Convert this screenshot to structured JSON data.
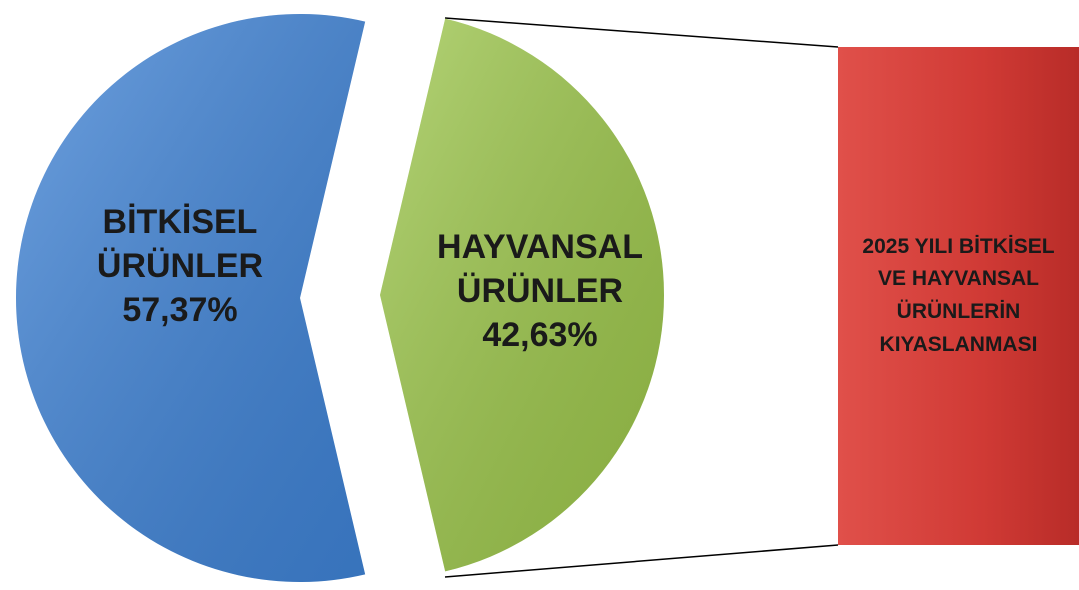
{
  "chart_data": {
    "type": "pie",
    "title": "2025 YILI BİTKİSEL VE HAYVANSAL ÜRÜNLERİN KIYASLANMASI",
    "categories": [
      "BİTKİSEL ÜRÜNLER",
      "HAYVANSAL ÜRÜNLER"
    ],
    "values": [
      57.37,
      42.63
    ],
    "value_labels": [
      "57,37%",
      "42,63%"
    ],
    "colors": [
      "#3f83d6",
      "#9cc64a"
    ]
  }
}
